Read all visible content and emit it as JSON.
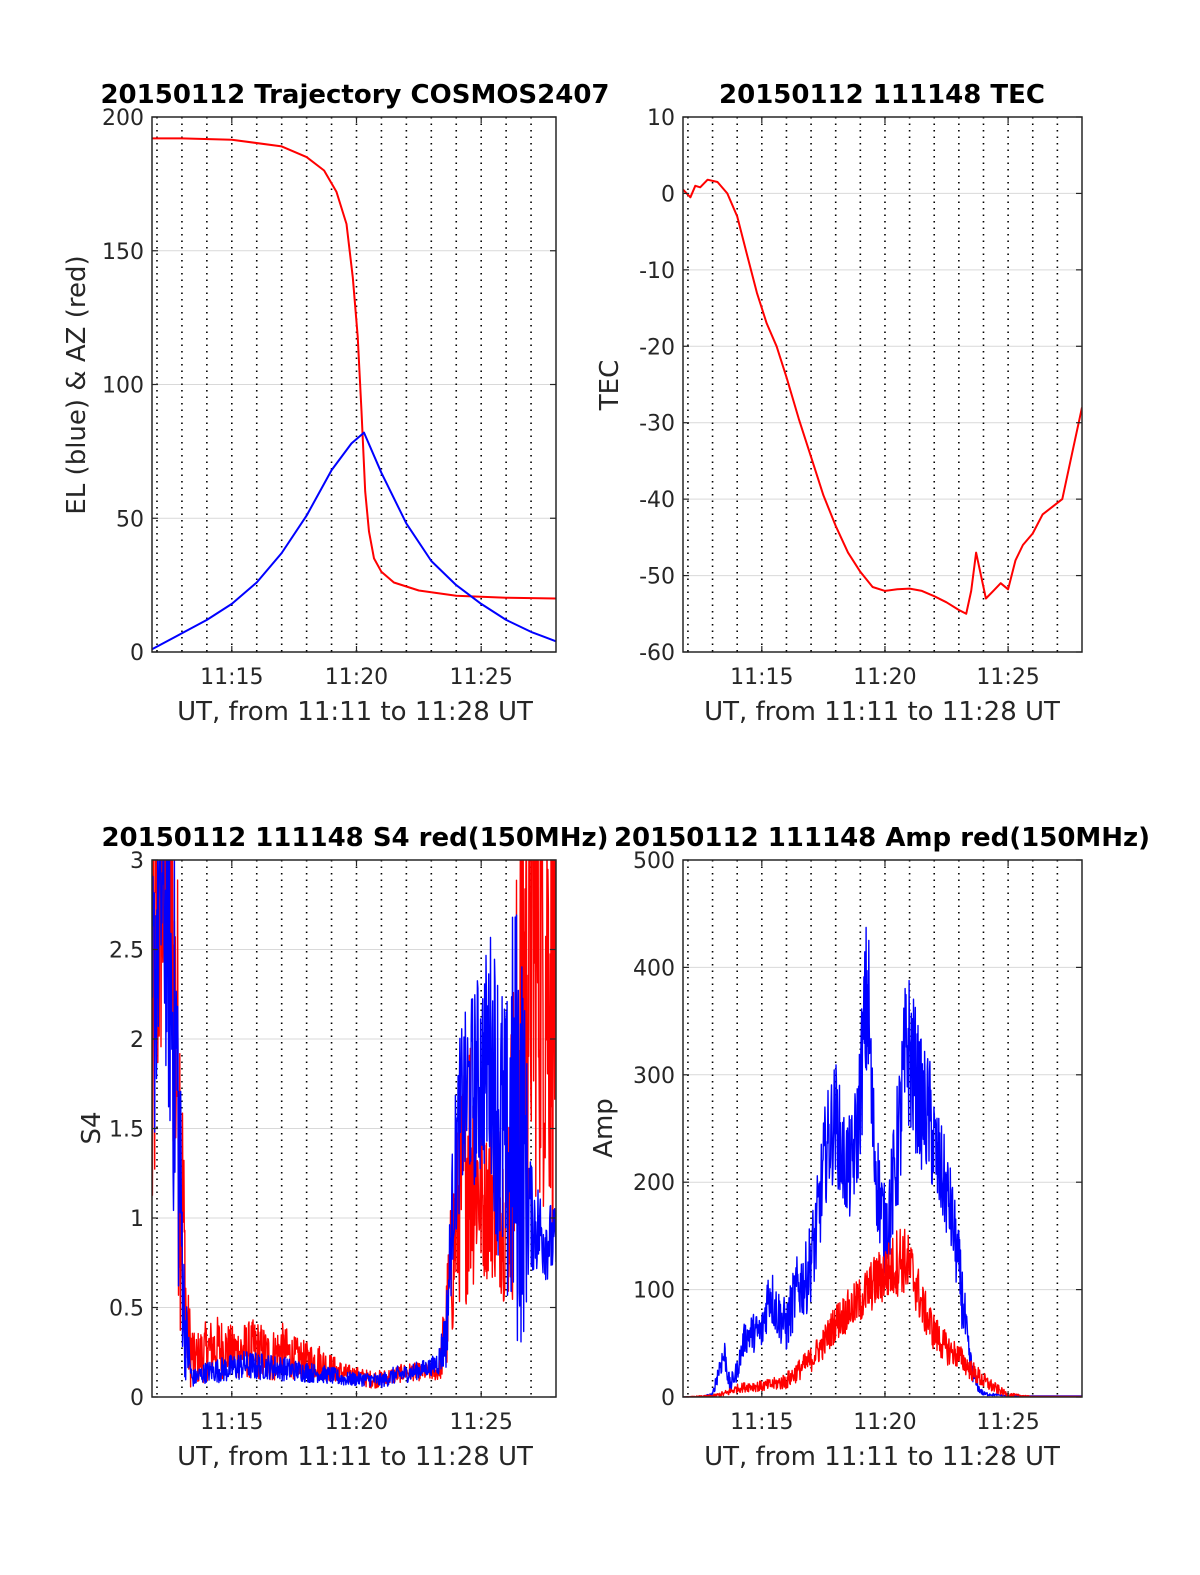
{
  "colors": {
    "red": "#ff0000",
    "blue": "#0000ff",
    "grid": "#d9d9d9",
    "axis": "#262626"
  },
  "chart_data": [
    {
      "id": "trajectory",
      "type": "line",
      "title": "20150112 Trajectory COSMOS2407",
      "xlabel": "UT, from 11:11 to 11:28 UT",
      "ylabel": "EL (blue) & AZ (red)",
      "xlim": [
        11.8,
        28
      ],
      "ylim": [
        0,
        200
      ],
      "xticks": [
        15,
        20,
        25
      ],
      "xtick_labels": [
        "11:15",
        "11:20",
        "11:25"
      ],
      "yticks": [
        0,
        50,
        100,
        150,
        200
      ],
      "ytick_labels": [
        "0",
        "50",
        "100",
        "150",
        "200"
      ],
      "grid": true,
      "series": [
        {
          "color": "#ff0000",
          "style": "line",
          "x": [
            11.8,
            13,
            15,
            17,
            18,
            18.7,
            19.2,
            19.6,
            19.85,
            20.05,
            20.2,
            20.35,
            20.5,
            20.7,
            21,
            21.5,
            22.5,
            24,
            26,
            28
          ],
          "y": [
            192,
            192,
            191.5,
            189,
            185,
            180,
            172,
            160,
            140,
            118,
            90,
            60,
            45,
            35,
            30,
            26,
            23,
            21,
            20.3,
            20
          ]
        },
        {
          "color": "#0000ff",
          "style": "line",
          "x": [
            11.8,
            13,
            14,
            15,
            16,
            17,
            18,
            19,
            19.8,
            20.3,
            21,
            22,
            23,
            24,
            25,
            26,
            27,
            28
          ],
          "y": [
            1,
            7,
            12,
            18,
            26,
            37,
            51,
            68,
            78,
            82,
            67,
            48,
            34,
            25,
            18,
            12,
            7.5,
            4
          ]
        }
      ]
    },
    {
      "id": "tec",
      "type": "line",
      "title": "20150112 111148 TEC",
      "xlabel": "UT, from 11:11 to 11:28 UT",
      "ylabel": "TEC",
      "xlim": [
        11.8,
        28
      ],
      "ylim": [
        -60,
        10
      ],
      "xticks": [
        15,
        20,
        25
      ],
      "xtick_labels": [
        "11:15",
        "11:20",
        "11:25"
      ],
      "yticks": [
        -60,
        -50,
        -40,
        -30,
        -20,
        -10,
        0,
        10
      ],
      "ytick_labels": [
        "-60",
        "-50",
        "-40",
        "-30",
        "-20",
        "-10",
        "0",
        "10"
      ],
      "grid": true,
      "series": [
        {
          "color": "#ff0000",
          "style": "line",
          "x": [
            11.8,
            12.1,
            12.3,
            12.5,
            12.8,
            13.2,
            13.6,
            14,
            14.4,
            14.8,
            15.2,
            15.6,
            16,
            16.5,
            17,
            17.5,
            18,
            18.5,
            19,
            19.5,
            20,
            20.5,
            21,
            21.5,
            22,
            22.5,
            23,
            23.3,
            23.5,
            23.7,
            23.9,
            24.1,
            24.4,
            24.7,
            25,
            25.3,
            25.6,
            26,
            26.4,
            26.8,
            27.2,
            27.6,
            28
          ],
          "y": [
            0.5,
            -0.5,
            1,
            0.8,
            1.8,
            1.5,
            0,
            -3,
            -8,
            -13,
            -17,
            -20,
            -24,
            -29.5,
            -34.5,
            -39.5,
            -43.5,
            -47,
            -49.5,
            -51.5,
            -52,
            -51.8,
            -51.7,
            -52,
            -52.7,
            -53.5,
            -54.5,
            -55,
            -52,
            -47,
            -50,
            -53,
            -52,
            -51,
            -51.8,
            -48,
            -46,
            -44.5,
            -42,
            -41,
            -40,
            -34,
            -28
          ]
        }
      ]
    },
    {
      "id": "s4",
      "type": "line",
      "title": "20150112 111148 S4 red(150MHz)",
      "xlabel": "UT, from 11:11 to 11:28 UT",
      "ylabel": "S4",
      "xlim": [
        11.8,
        28
      ],
      "ylim": [
        0,
        3
      ],
      "xticks": [
        15,
        20,
        25
      ],
      "xtick_labels": [
        "11:15",
        "11:20",
        "11:25"
      ],
      "yticks": [
        0,
        0.5,
        1,
        1.5,
        2,
        2.5,
        3
      ],
      "ytick_labels": [
        "0",
        "0.5",
        "1",
        "1.5",
        "2",
        "2.5",
        "3"
      ],
      "grid": true,
      "series": [
        {
          "color": "#ff0000",
          "style": "noisy",
          "x": [
            11.8,
            12,
            12.3,
            12.6,
            12.9,
            13.2,
            13.5,
            14,
            14.5,
            15,
            15.5,
            16,
            16.5,
            17,
            17.5,
            18,
            18.5,
            19,
            19.5,
            20,
            20.5,
            21,
            21.5,
            22,
            22.5,
            23,
            23.3,
            23.6,
            23.9,
            24.2,
            24.5,
            24.8,
            25.1,
            25.4,
            25.7,
            26,
            26.3,
            26.6,
            27,
            27.5,
            28
          ],
          "y": [
            1.5,
            2.6,
            2.9,
            2.5,
            1.6,
            0.35,
            0.2,
            0.26,
            0.28,
            0.25,
            0.26,
            0.27,
            0.22,
            0.26,
            0.22,
            0.2,
            0.2,
            0.16,
            0.13,
            0.12,
            0.1,
            0.1,
            0.12,
            0.14,
            0.14,
            0.14,
            0.14,
            0.4,
            0.85,
            1.15,
            1.4,
            1.25,
            1.05,
            1.15,
            1.1,
            1.0,
            1.5,
            2.2,
            2.6,
            2.5,
            2.4
          ],
          "amp": [
            1.2,
            1.3,
            0.8,
            1.2,
            1.2,
            0.3,
            0.15,
            0.17,
            0.18,
            0.15,
            0.16,
            0.17,
            0.15,
            0.16,
            0.12,
            0.11,
            0.1,
            0.08,
            0.06,
            0.05,
            0.05,
            0.05,
            0.05,
            0.05,
            0.05,
            0.05,
            0.05,
            0.3,
            0.5,
            0.6,
            0.9,
            0.6,
            0.4,
            0.5,
            0.5,
            0.5,
            1.0,
            1.6,
            1.5,
            1.5,
            1.5
          ]
        },
        {
          "color": "#0000ff",
          "style": "noisy",
          "x": [
            11.8,
            12,
            12.2,
            12.5,
            12.8,
            13.1,
            13.4,
            14,
            14.5,
            15,
            15.5,
            16,
            16.5,
            17,
            17.5,
            18,
            18.5,
            19,
            19.5,
            20,
            20.5,
            21,
            21.5,
            22,
            22.5,
            23,
            23.3,
            23.6,
            23.9,
            24.2,
            24.5,
            24.8,
            25.1,
            25.4,
            25.7,
            26,
            26.3,
            26.6,
            27,
            27.5,
            28
          ],
          "y": [
            2.0,
            2.6,
            2.8,
            2.4,
            1.8,
            0.4,
            0.1,
            0.14,
            0.15,
            0.16,
            0.18,
            0.17,
            0.17,
            0.16,
            0.15,
            0.14,
            0.13,
            0.12,
            0.1,
            0.1,
            0.1,
            0.09,
            0.12,
            0.13,
            0.15,
            0.17,
            0.2,
            0.35,
            1.2,
            1.6,
            1.7,
            1.75,
            1.85,
            1.95,
            1.6,
            1.3,
            1.55,
            1.5,
            1.0,
            0.9,
            0.85
          ],
          "amp": [
            1.0,
            0.9,
            0.6,
            1.0,
            1.2,
            0.3,
            0.05,
            0.06,
            0.07,
            0.08,
            0.08,
            0.08,
            0.07,
            0.07,
            0.06,
            0.06,
            0.05,
            0.05,
            0.04,
            0.04,
            0.04,
            0.04,
            0.05,
            0.05,
            0.05,
            0.05,
            0.08,
            0.2,
            0.4,
            0.5,
            0.5,
            0.6,
            0.6,
            0.7,
            0.9,
            0.9,
            1.3,
            1.3,
            0.3,
            0.25,
            0.2
          ]
        }
      ]
    },
    {
      "id": "amp",
      "type": "line",
      "title": "20150112 111148 Amp red(150MHz)",
      "xlabel": "UT, from 11:11 to 11:28 UT",
      "ylabel": "Amp",
      "xlim": [
        11.8,
        28
      ],
      "ylim": [
        0,
        500
      ],
      "xticks": [
        15,
        20,
        25
      ],
      "xtick_labels": [
        "11:15",
        "11:20",
        "11:25"
      ],
      "yticks": [
        0,
        100,
        200,
        300,
        400,
        500
      ],
      "ytick_labels": [
        "0",
        "100",
        "200",
        "300",
        "400",
        "500"
      ],
      "grid": true,
      "series": [
        {
          "color": "#0000ff",
          "style": "noisy",
          "x": [
            11.8,
            12.5,
            13,
            13.3,
            13.5,
            13.7,
            14,
            14.3,
            14.6,
            15,
            15.3,
            15.6,
            16,
            16.4,
            16.8,
            17.2,
            17.6,
            18,
            18.3,
            18.6,
            18.9,
            19.1,
            19.3,
            19.5,
            19.7,
            20,
            20.3,
            20.6,
            20.9,
            21.2,
            21.5,
            21.8,
            22.1,
            22.4,
            22.7,
            23,
            23.2,
            23.4,
            23.6,
            23.8,
            24,
            24.5,
            25,
            26,
            27,
            28
          ],
          "y": [
            0,
            0,
            2,
            30,
            40,
            10,
            25,
            55,
            60,
            60,
            100,
            80,
            65,
            100,
            110,
            150,
            230,
            260,
            220,
            210,
            250,
            320,
            380,
            250,
            200,
            150,
            190,
            250,
            330,
            300,
            270,
            260,
            220,
            200,
            170,
            120,
            80,
            40,
            20,
            8,
            3,
            2,
            1,
            1,
            1,
            1
          ],
          "amp": [
            0,
            0,
            2,
            12,
            15,
            8,
            10,
            15,
            18,
            20,
            30,
            25,
            25,
            30,
            35,
            45,
            50,
            55,
            50,
            50,
            55,
            70,
            90,
            60,
            50,
            45,
            50,
            70,
            80,
            70,
            60,
            60,
            50,
            45,
            40,
            35,
            30,
            15,
            8,
            4,
            2,
            1,
            0,
            0,
            0,
            0
          ]
        },
        {
          "color": "#ff0000",
          "style": "noisy",
          "x": [
            11.8,
            13,
            13.5,
            14,
            14.5,
            15,
            15.5,
            16,
            16.5,
            17,
            17.5,
            18,
            18.5,
            19,
            19.5,
            20,
            20.3,
            20.6,
            20.9,
            21.2,
            21.5,
            22,
            22.5,
            23,
            23.5,
            24,
            24.5,
            25,
            26,
            27,
            28
          ],
          "y": [
            0,
            1,
            3,
            8,
            10,
            10,
            12,
            15,
            25,
            35,
            50,
            70,
            80,
            90,
            105,
            115,
            120,
            130,
            125,
            110,
            85,
            60,
            45,
            38,
            25,
            15,
            8,
            2,
            0.5,
            0.5,
            0.5
          ],
          "amp": [
            0,
            1,
            3,
            4,
            5,
            5,
            6,
            8,
            10,
            12,
            15,
            18,
            20,
            22,
            25,
            28,
            30,
            35,
            30,
            28,
            22,
            18,
            15,
            12,
            10,
            8,
            5,
            2,
            0,
            0,
            0
          ]
        }
      ]
    }
  ]
}
